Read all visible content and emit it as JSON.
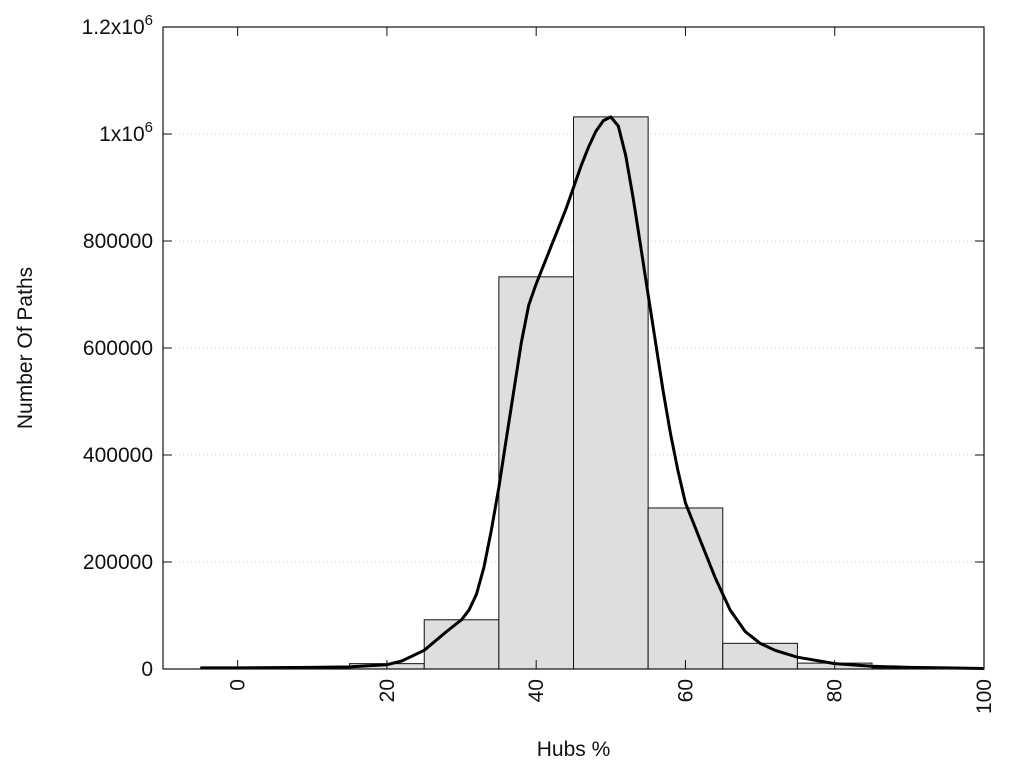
{
  "chart_data": {
    "type": "bar",
    "title": "",
    "xlabel": "Hubs %",
    "ylabel": "Number Of Paths",
    "xlim": [
      -10,
      100
    ],
    "ylim": [
      0,
      1200000
    ],
    "grid": true,
    "x_ticks": [
      {
        "value": 0,
        "label": "0"
      },
      {
        "value": 20,
        "label": "20"
      },
      {
        "value": 40,
        "label": "40"
      },
      {
        "value": 60,
        "label": "60"
      },
      {
        "value": 80,
        "label": "80"
      },
      {
        "value": 100,
        "label": "100"
      }
    ],
    "y_ticks": [
      {
        "value": 0,
        "base": "0",
        "exp": ""
      },
      {
        "value": 200000,
        "base": "200000",
        "exp": ""
      },
      {
        "value": 400000,
        "base": "400000",
        "exp": ""
      },
      {
        "value": 600000,
        "base": "600000",
        "exp": ""
      },
      {
        "value": 800000,
        "base": "800000",
        "exp": ""
      },
      {
        "value": 1000000,
        "base": "1x10",
        "exp": "6"
      },
      {
        "value": 1200000,
        "base": "1.2x10",
        "exp": "6"
      }
    ],
    "bins": [
      {
        "x0": -5,
        "x1": 5,
        "value": 1000
      },
      {
        "x0": 5,
        "x1": 15,
        "value": 2000
      },
      {
        "x0": 15,
        "x1": 25,
        "value": 10000
      },
      {
        "x0": 25,
        "x1": 35,
        "value": 92000
      },
      {
        "x0": 35,
        "x1": 45,
        "value": 733000
      },
      {
        "x0": 45,
        "x1": 55,
        "value": 1032000
      },
      {
        "x0": 55,
        "x1": 65,
        "value": 301000
      },
      {
        "x0": 65,
        "x1": 75,
        "value": 48000
      },
      {
        "x0": 75,
        "x1": 85,
        "value": 11000
      },
      {
        "x0": 85,
        "x1": 95,
        "value": 2000
      }
    ],
    "curve": {
      "x": [
        -5,
        0,
        10,
        15,
        20,
        22,
        25,
        28,
        30,
        31,
        32,
        33,
        34,
        35,
        36,
        37,
        38,
        39,
        40,
        42,
        44,
        45,
        46,
        47,
        48,
        49,
        50,
        51,
        52,
        53,
        54,
        55,
        56,
        57,
        58,
        59,
        60,
        62,
        64,
        66,
        68,
        70,
        72,
        75,
        80,
        85,
        90,
        95,
        100
      ],
      "y": [
        2000,
        2000,
        3000,
        4000,
        8000,
        15000,
        35000,
        70000,
        92000,
        110000,
        140000,
        190000,
        260000,
        340000,
        430000,
        520000,
        610000,
        680000,
        720000,
        790000,
        860000,
        900000,
        940000,
        975000,
        1005000,
        1025000,
        1032000,
        1015000,
        960000,
        880000,
        790000,
        700000,
        610000,
        520000,
        440000,
        370000,
        310000,
        240000,
        170000,
        110000,
        70000,
        48000,
        35000,
        22000,
        10000,
        5000,
        3000,
        2000,
        1000
      ]
    }
  }
}
